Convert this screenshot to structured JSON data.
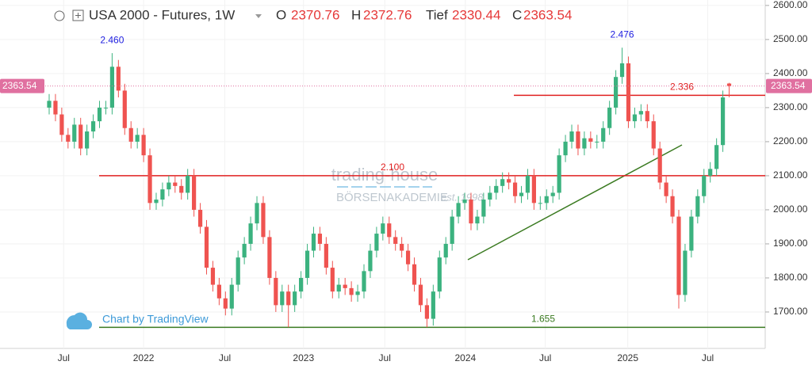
{
  "chart_data": {
    "type": "candlestick",
    "title": "USA 2000 - Futures, 1W",
    "ohlc_labels": {
      "open": "O",
      "high": "H",
      "low": "Tief",
      "close": "C"
    },
    "credit": "Chart by TradingView",
    "watermark": [
      "trading-house",
      "BÖRSENAKADEMIE",
      "est. 1998"
    ],
    "up_color": "#3bb27f",
    "down_color": "#ef5350",
    "ylim": [
      1593,
      2616
    ],
    "yticks": [
      {
        "value": 1700,
        "label": "1700.00"
      },
      {
        "value": 1800,
        "label": "1800.00"
      },
      {
        "value": 1900,
        "label": "1900.00"
      },
      {
        "value": 2000,
        "label": "2000.00"
      },
      {
        "value": 2100,
        "label": "2100.00"
      },
      {
        "value": 2200,
        "label": "2200.00"
      },
      {
        "value": 2300,
        "label": "2300.00"
      },
      {
        "value": 2400,
        "label": "2400.00"
      },
      {
        "value": 2500,
        "label": "2500.00"
      },
      {
        "value": 2600,
        "label": "2600.00"
      }
    ],
    "xticks": [
      "Jul",
      "2022",
      "Jul",
      "2023",
      "Jul",
      "2024",
      "Jul",
      "2025",
      "Jul"
    ],
    "levels": [
      {
        "value": 2336,
        "label": "2.336",
        "color": "#e02020"
      },
      {
        "value": 2100,
        "label": "2.100",
        "color": "#e02020"
      },
      {
        "value": 1655,
        "label": "1.655",
        "color": "#3a7a20"
      }
    ],
    "peaks": [
      {
        "value": 2460,
        "label": "2.460"
      },
      {
        "value": 2476,
        "label": "2.476"
      }
    ],
    "open": [
      2300,
      2320,
      2280,
      2220,
      2200,
      2250,
      2180,
      2230,
      2260,
      2300,
      2300,
      2420,
      2350,
      2240,
      2200,
      2220,
      2160,
      2020,
      2030,
      2060,
      2080,
      2070,
      2050,
      2100,
      2000,
      1950,
      1830,
      1780,
      1740,
      1710,
      1780,
      1860,
      1900,
      1960,
      2020,
      1920,
      1800,
      1720,
      1760,
      1720,
      1760,
      1800,
      1880,
      1930,
      1900,
      1830,
      1760,
      1780,
      1770,
      1750,
      1760,
      1820,
      1880,
      1930,
      1960,
      1920,
      1900,
      1880,
      1840,
      1780,
      1720,
      1680,
      1760,
      1860,
      1900,
      1980,
      2020,
      2030,
      1960,
      1980,
      2030,
      2050,
      2070,
      2090,
      2080,
      2040,
      2050,
      2100,
      2020,
      2020,
      2040,
      2050,
      2160,
      2200,
      2230,
      2180,
      2210,
      2200,
      2200,
      2240,
      2300,
      2390,
      2430,
      2260,
      2280,
      2290,
      2260,
      2180,
      2080,
      2040,
      1980,
      1750,
      1880,
      1980,
      2040,
      2100,
      2120,
      2190,
      2370.76
    ],
    "high": [
      2340,
      2340,
      2300,
      2240,
      2270,
      2270,
      2250,
      2280,
      2320,
      2320,
      2460,
      2440,
      2370,
      2260,
      2240,
      2240,
      2180,
      2050,
      2080,
      2100,
      2100,
      2090,
      2120,
      2120,
      2020,
      1970,
      1850,
      1800,
      1760,
      1800,
      1880,
      1920,
      1980,
      2040,
      2040,
      1940,
      1820,
      1780,
      1780,
      1780,
      1820,
      1900,
      1950,
      1950,
      1920,
      1850,
      1800,
      1800,
      1790,
      1780,
      1840,
      1900,
      1950,
      1980,
      1980,
      1940,
      1920,
      1900,
      1860,
      1800,
      1740,
      1780,
      1880,
      1920,
      2000,
      2040,
      2050,
      2050,
      2000,
      2050,
      2070,
      2090,
      2110,
      2110,
      2100,
      2070,
      2120,
      2120,
      2040,
      2060,
      2070,
      2180,
      2220,
      2250,
      2250,
      2230,
      2230,
      2220,
      2260,
      2320,
      2410,
      2476,
      2450,
      2300,
      2310,
      2310,
      2280,
      2200,
      2100,
      2060,
      2000,
      1900,
      2000,
      2060,
      2120,
      2140,
      2210,
      2350,
      2372.76
    ],
    "low": [
      2280,
      2260,
      2200,
      2180,
      2180,
      2160,
      2160,
      2210,
      2240,
      2280,
      2280,
      2330,
      2220,
      2180,
      2180,
      2140,
      2000,
      2000,
      2010,
      2040,
      2050,
      2030,
      2030,
      1980,
      1930,
      1810,
      1760,
      1720,
      1690,
      1690,
      1760,
      1840,
      1880,
      1940,
      1900,
      1780,
      1700,
      1700,
      1655,
      1700,
      1740,
      1780,
      1860,
      1880,
      1810,
      1740,
      1740,
      1750,
      1730,
      1730,
      1740,
      1800,
      1860,
      1910,
      1900,
      1880,
      1860,
      1820,
      1760,
      1700,
      1655,
      1660,
      1740,
      1840,
      1880,
      1960,
      2000,
      1940,
      1940,
      1960,
      2010,
      2030,
      2050,
      2060,
      2020,
      2020,
      2030,
      2000,
      2000,
      2000,
      2020,
      2030,
      2140,
      2180,
      2160,
      2160,
      2180,
      2180,
      2180,
      2220,
      2280,
      2370,
      2240,
      2240,
      2260,
      2240,
      2160,
      2060,
      2020,
      1960,
      1710,
      1730,
      1860,
      1960,
      2020,
      2080,
      2100,
      2170,
      2330.44
    ],
    "close": [
      2320,
      2280,
      2220,
      2200,
      2250,
      2180,
      2230,
      2260,
      2300,
      2300,
      2420,
      2350,
      2240,
      2200,
      2220,
      2160,
      2020,
      2030,
      2060,
      2080,
      2070,
      2050,
      2100,
      2000,
      1950,
      1830,
      1780,
      1740,
      1710,
      1780,
      1860,
      1900,
      1960,
      2020,
      1920,
      1800,
      1720,
      1760,
      1720,
      1760,
      1800,
      1880,
      1930,
      1900,
      1830,
      1760,
      1780,
      1770,
      1750,
      1760,
      1820,
      1880,
      1930,
      1960,
      1920,
      1900,
      1880,
      1840,
      1780,
      1720,
      1680,
      1760,
      1860,
      1900,
      1980,
      2020,
      2030,
      1960,
      1980,
      2030,
      2050,
      2070,
      2090,
      2080,
      2040,
      2050,
      2100,
      2020,
      2020,
      2040,
      2050,
      2160,
      2200,
      2230,
      2180,
      2210,
      2200,
      2200,
      2240,
      2300,
      2390,
      2430,
      2260,
      2280,
      2290,
      2260,
      2180,
      2080,
      2040,
      1980,
      1750,
      1880,
      1980,
      2040,
      2100,
      2120,
      2190,
      2330,
      2363.54
    ]
  }
}
